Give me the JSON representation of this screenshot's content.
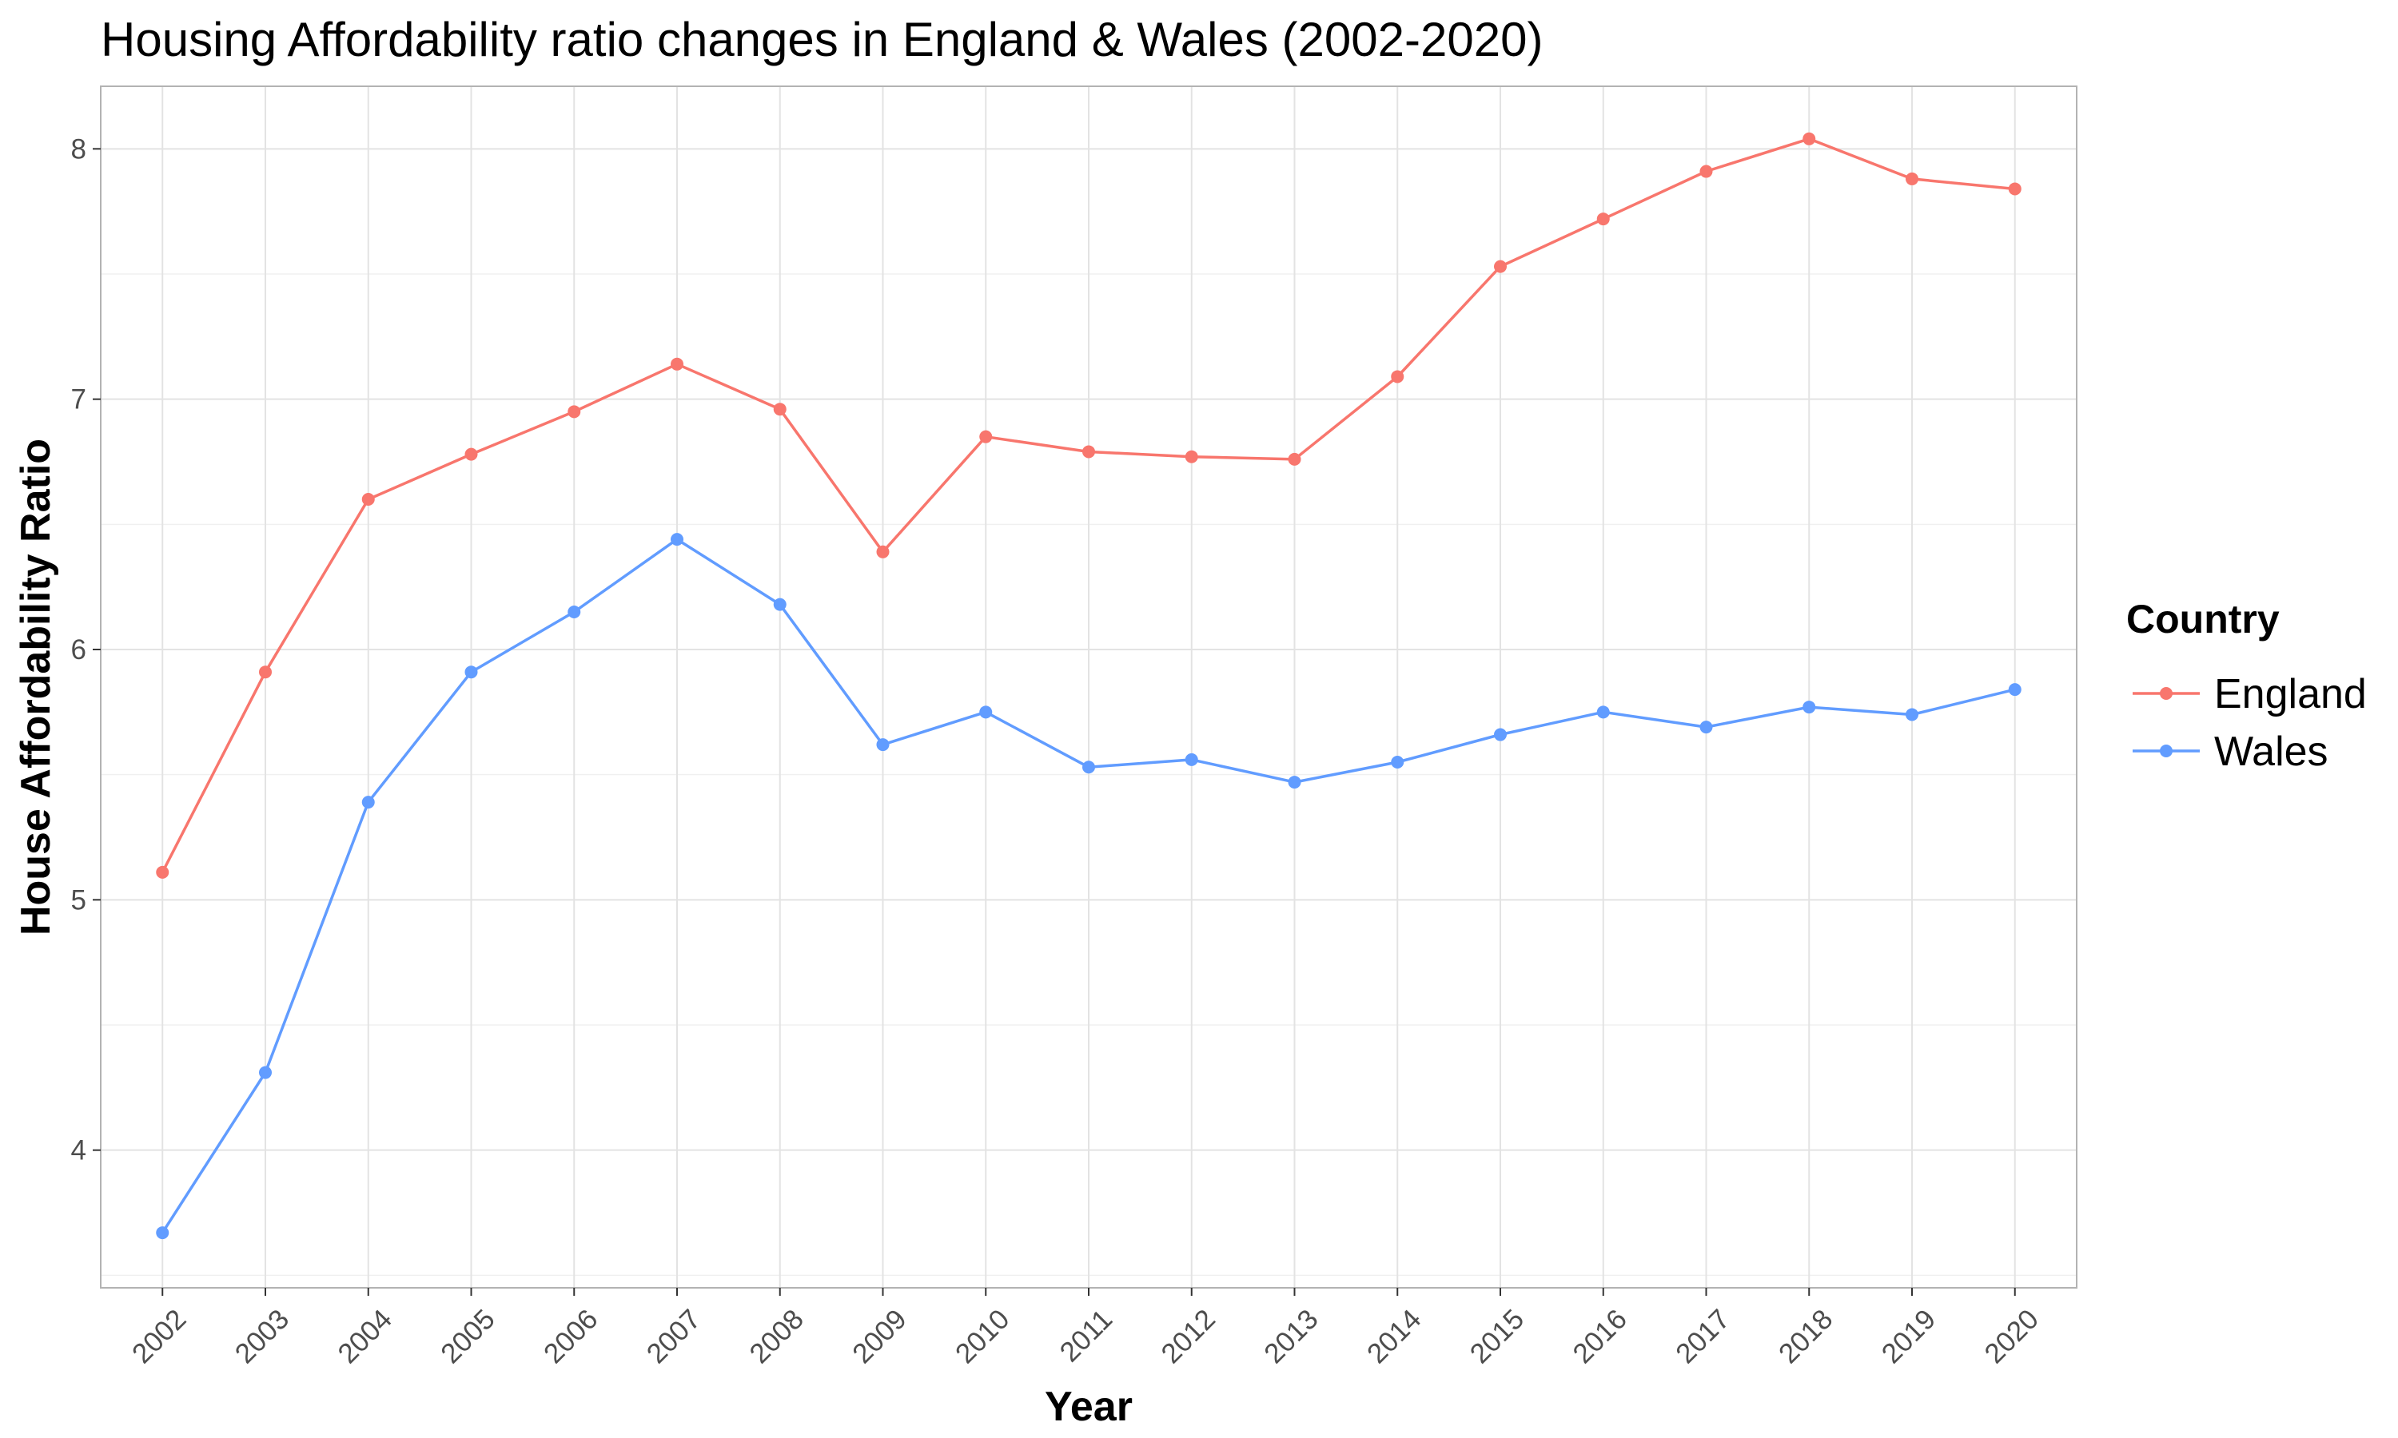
{
  "chart_data": {
    "type": "line",
    "title": "Housing Affordability ratio changes in England & Wales (2002-2020)",
    "xlabel": "Year",
    "ylabel": "House Affordability Ratio",
    "x": [
      2002,
      2003,
      2004,
      2005,
      2006,
      2007,
      2008,
      2009,
      2010,
      2011,
      2012,
      2013,
      2014,
      2015,
      2016,
      2017,
      2018,
      2019,
      2020
    ],
    "x_tick_labels": [
      "2002",
      "2003",
      "2004",
      "2005",
      "2006",
      "2007",
      "2008",
      "2009",
      "2010",
      "2011",
      "2012",
      "2013",
      "2014",
      "2015",
      "2016",
      "2017",
      "2018",
      "2019",
      "2020"
    ],
    "y_ticks": [
      4,
      5,
      6,
      7,
      8
    ],
    "y_tick_labels": [
      "4",
      "5",
      "6",
      "7",
      "8"
    ],
    "ylim": [
      3.45,
      8.25
    ],
    "grid": true,
    "legend": {
      "title": "Country",
      "position": "right"
    },
    "series": [
      {
        "name": "England",
        "color": "#F8766D",
        "values": [
          5.11,
          5.91,
          6.6,
          6.78,
          6.95,
          7.14,
          6.96,
          6.39,
          6.85,
          6.79,
          6.77,
          6.76,
          7.09,
          7.53,
          7.72,
          7.91,
          8.04,
          7.88,
          7.84
        ]
      },
      {
        "name": "Wales",
        "color": "#619CFF",
        "values": [
          3.67,
          4.31,
          5.39,
          5.91,
          6.15,
          6.44,
          6.18,
          5.62,
          5.75,
          5.53,
          5.56,
          5.47,
          5.55,
          5.66,
          5.75,
          5.69,
          5.77,
          5.74,
          5.84
        ]
      }
    ]
  }
}
